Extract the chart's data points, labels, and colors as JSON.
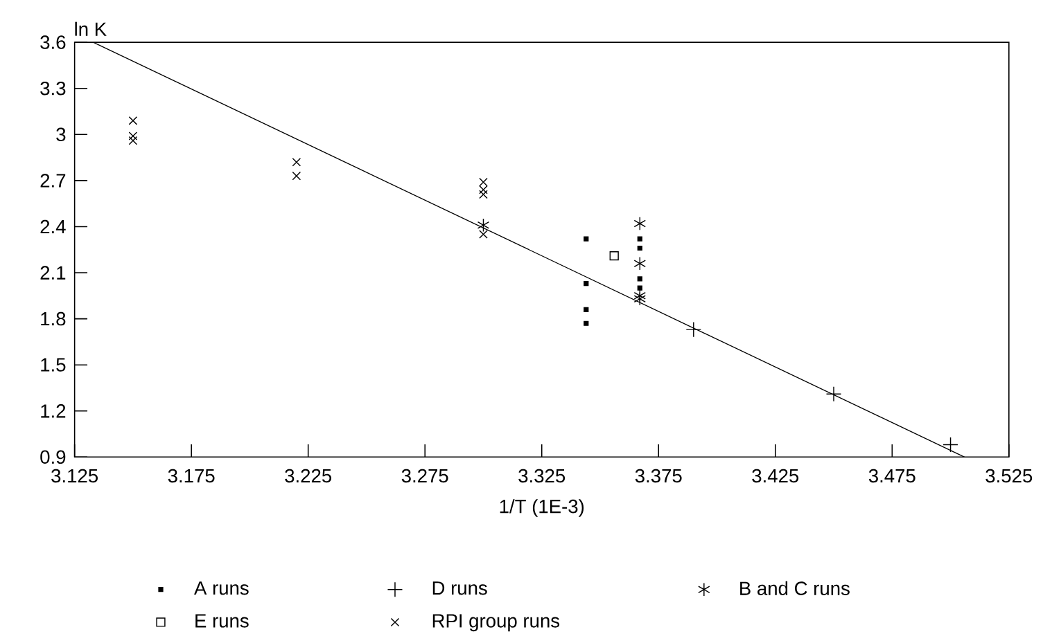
{
  "chart_data": {
    "type": "scatter",
    "xlabel": "1/T (1E-3)",
    "ylabel": "ln K",
    "xlim": [
      3.125,
      3.525
    ],
    "ylim": [
      0.9,
      3.6
    ],
    "xticks": [
      3.125,
      3.175,
      3.225,
      3.275,
      3.325,
      3.375,
      3.425,
      3.475,
      3.525
    ],
    "yticks": [
      0.9,
      1.2,
      1.5,
      1.8,
      2.1,
      2.4,
      2.7,
      3,
      3.3,
      3.6
    ],
    "legend": "bottom",
    "series": [
      {
        "name": "A runs",
        "color": "#000000",
        "marker": "square",
        "x": [
          3.344,
          3.344,
          3.344,
          3.344,
          3.367,
          3.367,
          3.367,
          3.367
        ],
        "values": [
          2.32,
          2.03,
          1.86,
          1.77,
          2.32,
          2.26,
          2.06,
          2.0
        ]
      },
      {
        "name": "D runs",
        "color": "#000000",
        "marker": "cross",
        "x": [
          3.39,
          3.45,
          3.5
        ],
        "values": [
          1.73,
          1.31,
          0.98
        ]
      },
      {
        "name": "B and C runs",
        "color": "#000000",
        "marker": "cross",
        "x": [
          3.3,
          3.367,
          3.367,
          3.367,
          3.367
        ],
        "values": [
          2.41,
          2.42,
          2.16,
          1.95,
          1.93
        ]
      },
      {
        "name": "E runs",
        "color": "#000000",
        "marker": "square",
        "x": [
          3.356
        ],
        "values": [
          2.21
        ]
      },
      {
        "name": "RPI group runs",
        "color": "#000000",
        "marker": "cross",
        "x": [
          3.15,
          3.15,
          3.15,
          3.22,
          3.22,
          3.3,
          3.3,
          3.3,
          3.3
        ],
        "values": [
          3.09,
          2.99,
          2.96,
          2.82,
          2.73,
          2.69,
          2.64,
          2.61,
          2.35
        ]
      },
      {
        "type": "line",
        "color": "#000000",
        "x": [
          3.133,
          3.506
        ],
        "values": [
          3.6,
          0.9
        ]
      }
    ]
  }
}
